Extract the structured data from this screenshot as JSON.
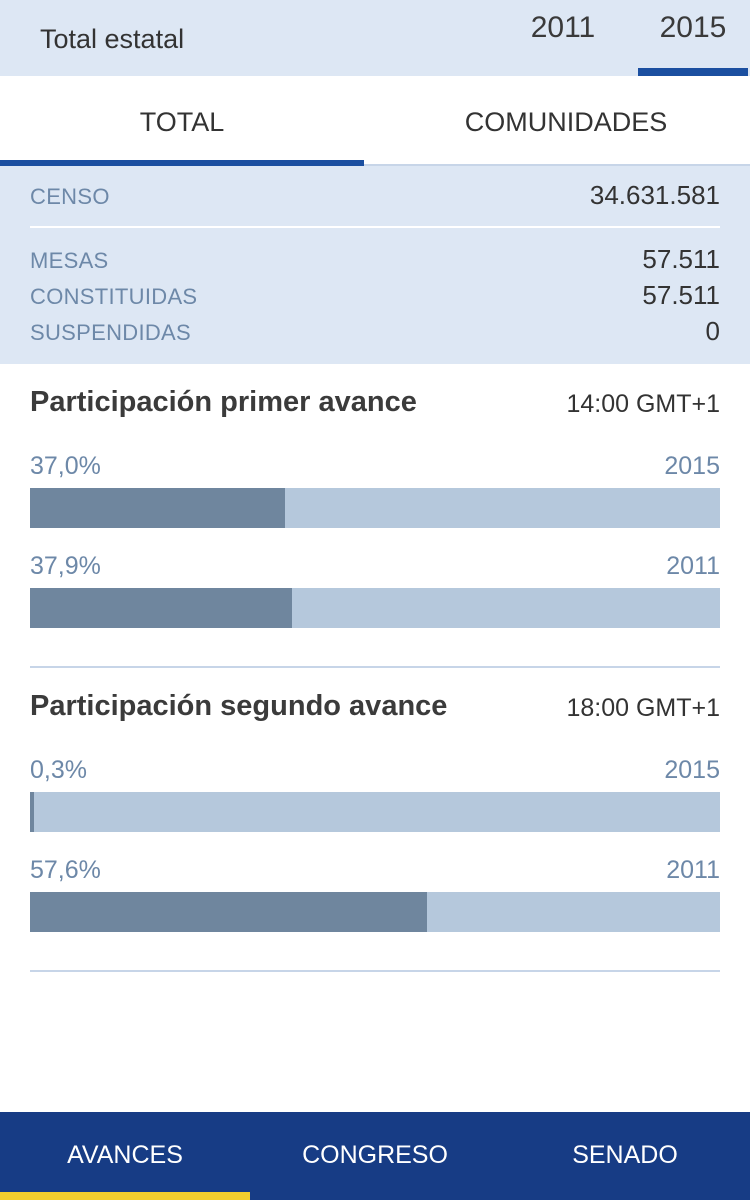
{
  "header": {
    "title": "Total estatal",
    "years": [
      {
        "label": "2011",
        "selected": false
      },
      {
        "label": "2015",
        "selected": true
      }
    ]
  },
  "tabs": [
    {
      "label": "TOTAL",
      "selected": true
    },
    {
      "label": "COMUNIDADES",
      "selected": false
    }
  ],
  "stats": {
    "censo": {
      "label": "CENSO",
      "value": "34.631.581"
    },
    "mesas": {
      "label": "MESAS",
      "value": "57.511"
    },
    "constituidas": {
      "label": "CONSTITUIDAS",
      "value": "57.511"
    },
    "suspendidas": {
      "label": "SUSPENDIDAS",
      "value": "0"
    }
  },
  "participation": [
    {
      "title": "Participación primer avance",
      "time": "14:00 GMT+1",
      "bars": [
        {
          "percent_label": "37,0%",
          "year": "2015",
          "value": 37.0
        },
        {
          "percent_label": "37,9%",
          "year": "2011",
          "value": 37.9
        }
      ]
    },
    {
      "title": "Participación segundo avance",
      "time": "18:00 GMT+1",
      "bars": [
        {
          "percent_label": "0,3%",
          "year": "2015",
          "value": 0.3
        },
        {
          "percent_label": "57,6%",
          "year": "2011",
          "value": 57.6
        }
      ]
    }
  ],
  "bottom_nav": [
    {
      "label": "AVANCES",
      "selected": true
    },
    {
      "label": "CONGRESO",
      "selected": false
    },
    {
      "label": "SENADO",
      "selected": false
    }
  ],
  "colors": {
    "brand_blue": "#1b4fa0",
    "nav_background": "#173c85",
    "nav_active_indicator": "#f3cf2e",
    "panel_background": "#dde7f4",
    "bar_fill": "#6f869e",
    "bar_track": "#b5c8dc",
    "label_blue_gray": "#6d88a8"
  }
}
